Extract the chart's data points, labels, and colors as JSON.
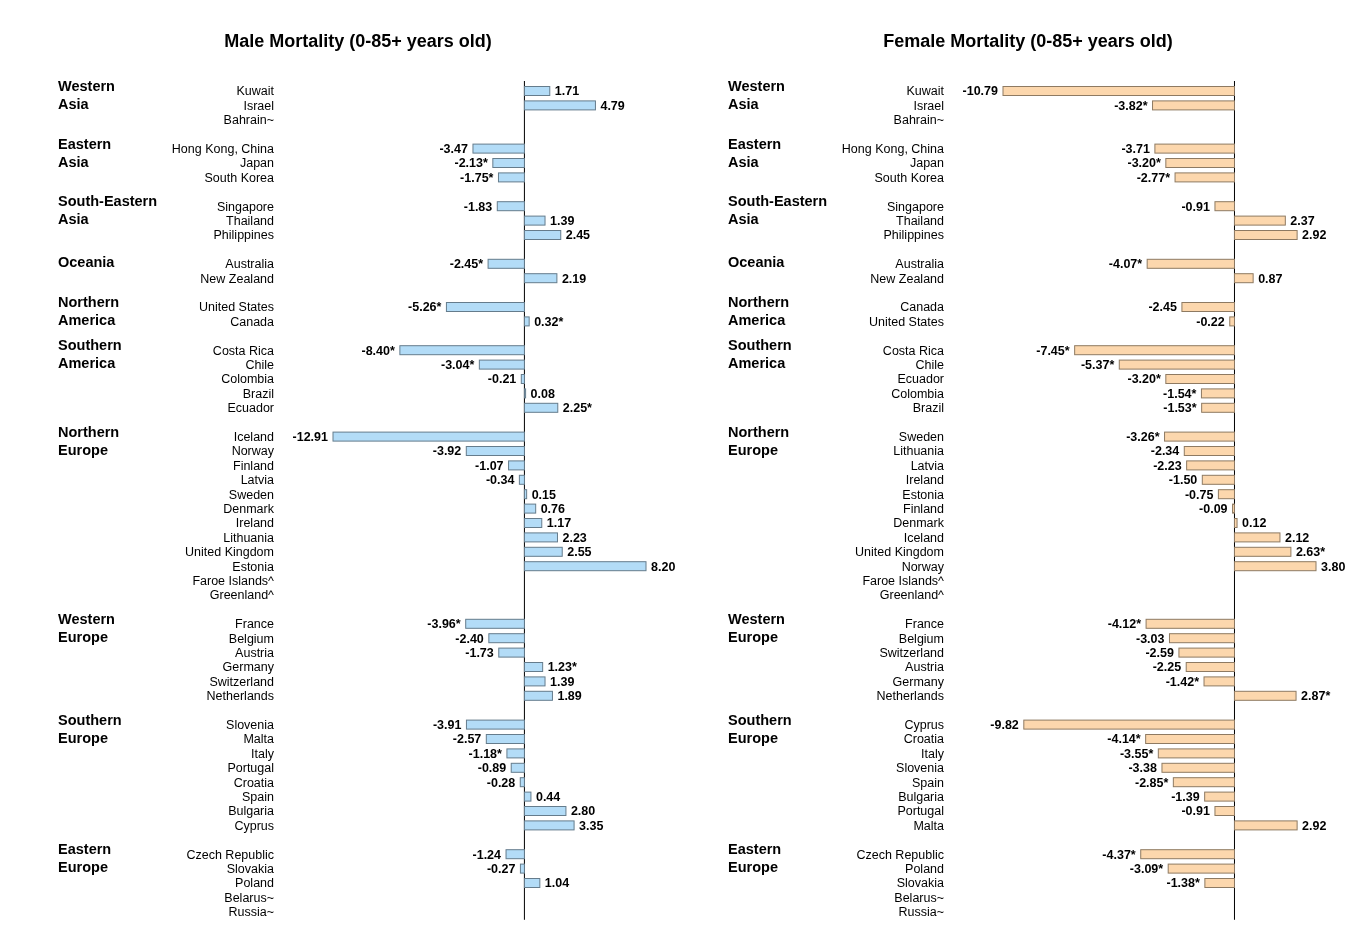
{
  "chart_data": [
    {
      "type": "bar",
      "orientation": "horizontal",
      "title": "Male Mortality (0-85+ years old)",
      "categories": [
        "Kuwait",
        "Israel",
        "Bahrain~",
        null,
        "Hong Kong, China",
        "Japan",
        "South Korea",
        null,
        "Singapore",
        "Thailand",
        "Philippines",
        null,
        "Australia",
        "New Zealand",
        null,
        "United States",
        "Canada",
        null,
        "Costa Rica",
        "Chile",
        "Colombia",
        "Brazil",
        "Ecuador",
        null,
        "Iceland",
        "Norway",
        "Finland",
        "Latvia",
        "Sweden",
        "Denmark",
        "Ireland",
        "Lithuania",
        "United Kingdom",
        "Estonia",
        "Faroe Islands^",
        "Greenland^",
        null,
        "France",
        "Belgium",
        "Austria",
        "Germany",
        "Switzerland",
        "Netherlands",
        null,
        "Slovenia",
        "Malta",
        "Italy",
        "Portugal",
        "Croatia",
        "Spain",
        "Bulgaria",
        "Cyprus",
        null,
        "Czech Republic",
        "Slovakia",
        "Poland",
        "Belarus~",
        "Russia~"
      ],
      "series": [
        {
          "color": "#b3dcf7",
          "values": [
            1.71,
            4.79,
            null,
            null,
            -3.47,
            -2.13,
            -1.75,
            null,
            -1.83,
            1.39,
            2.45,
            null,
            -2.45,
            2.19,
            null,
            -5.26,
            0.32,
            null,
            -8.4,
            -3.04,
            -0.21,
            0.08,
            2.25,
            null,
            -12.91,
            -3.92,
            -1.07,
            -0.34,
            0.15,
            0.76,
            1.17,
            2.23,
            2.55,
            8.2,
            null,
            null,
            null,
            -3.96,
            -2.4,
            -1.73,
            1.23,
            1.39,
            1.89,
            null,
            -3.91,
            -2.57,
            -1.18,
            -0.89,
            -0.28,
            0.44,
            2.8,
            3.35,
            null,
            -1.24,
            -0.27,
            1.04,
            null,
            null
          ],
          "value_labels": [
            "1.71",
            "4.79",
            null,
            null,
            "-3.47",
            "-2.13*",
            "-1.75*",
            null,
            "-1.83",
            "1.39",
            "2.45",
            null,
            "-2.45*",
            "2.19",
            null,
            "-5.26*",
            "0.32*",
            null,
            "-8.40*",
            "-3.04*",
            "-0.21",
            "0.08",
            "2.25*",
            null,
            "-12.91",
            "-3.92",
            "-1.07",
            "-0.34",
            "0.15",
            "0.76",
            "1.17",
            "2.23",
            "2.55",
            "8.20",
            null,
            null,
            null,
            "-3.96*",
            "-2.40",
            "-1.73",
            "1.23*",
            "1.39",
            "1.89",
            null,
            "-3.91",
            "-2.57",
            "-1.18*",
            "-0.89",
            "-0.28",
            "0.44",
            "2.80",
            "3.35",
            null,
            "-1.24",
            "-0.27",
            "1.04",
            null,
            null
          ]
        }
      ],
      "annotations": [
        "Western Asia",
        "Eastern Asia",
        "South-Eastern Asia",
        "Oceania",
        "Northern America",
        "Southern America",
        "Northern Europe",
        "Western Europe",
        "Southern Europe",
        "Eastern Europe"
      ]
    },
    {
      "type": "bar",
      "orientation": "horizontal",
      "title": "Female Mortality (0-85+ years old)",
      "categories": [
        "Kuwait",
        "Israel",
        "Bahrain~",
        null,
        "Hong Kong, China",
        "Japan",
        "South Korea",
        null,
        "Singapore",
        "Thailand",
        "Philippines",
        null,
        "Australia",
        "New Zealand",
        null,
        "Canada",
        "United States",
        null,
        "Costa Rica",
        "Chile",
        "Ecuador",
        "Colombia",
        "Brazil",
        null,
        "Sweden",
        "Lithuania",
        "Latvia",
        "Ireland",
        "Estonia",
        "Finland",
        "Denmark",
        "Iceland",
        "United Kingdom",
        "Norway",
        "Faroe Islands^",
        "Greenland^",
        null,
        "France",
        "Belgium",
        "Switzerland",
        "Austria",
        "Germany",
        "Netherlands",
        null,
        "Cyprus",
        "Croatia",
        "Italy",
        "Slovenia",
        "Spain",
        "Bulgaria",
        "Portugal",
        "Malta",
        null,
        "Czech Republic",
        "Poland",
        "Slovakia",
        "Belarus~",
        "Russia~"
      ],
      "series": [
        {
          "color": "#fcd7ad",
          "values": [
            -10.79,
            -3.82,
            null,
            null,
            -3.71,
            -3.2,
            -2.77,
            null,
            -0.91,
            2.37,
            2.92,
            null,
            -4.07,
            0.87,
            null,
            -2.45,
            -0.22,
            null,
            -7.45,
            -5.37,
            -3.2,
            -1.54,
            -1.53,
            null,
            -3.26,
            -2.34,
            -2.23,
            -1.5,
            -0.75,
            -0.09,
            0.12,
            2.12,
            2.63,
            3.8,
            null,
            null,
            null,
            -4.12,
            -3.03,
            -2.59,
            -2.25,
            -1.42,
            2.87,
            null,
            -9.82,
            -4.14,
            -3.55,
            -3.38,
            -2.85,
            -1.39,
            -0.91,
            2.92,
            null,
            -4.37,
            -3.09,
            -1.38,
            null,
            null
          ],
          "value_labels": [
            "-10.79",
            "-3.82*",
            null,
            null,
            "-3.71",
            "-3.20*",
            "-2.77*",
            null,
            "-0.91",
            "2.37",
            "2.92",
            null,
            "-4.07*",
            "0.87",
            null,
            "-2.45",
            "-0.22",
            null,
            "-7.45*",
            "-5.37*",
            "-3.20*",
            "-1.54*",
            "-1.53*",
            null,
            "-3.26*",
            "-2.34",
            "-2.23",
            "-1.50",
            "-0.75",
            "-0.09",
            "0.12",
            "2.12",
            "2.63*",
            "3.80",
            null,
            null,
            null,
            "-4.12*",
            "-3.03",
            "-2.59",
            "-2.25",
            "-1.42*",
            "2.87*",
            null,
            "-9.82",
            "-4.14*",
            "-3.55*",
            "-3.38",
            "-2.85*",
            "-1.39",
            "-0.91",
            "2.92",
            null,
            "-4.37*",
            "-3.09*",
            "-1.38*",
            null,
            null
          ]
        }
      ],
      "annotations": [
        "Western Asia",
        "Eastern Asia",
        "South-Eastern Asia",
        "Oceania",
        "Northern America",
        "Southern America",
        "Northern Europe",
        "Western Europe",
        "Southern Europe",
        "Eastern Europe"
      ]
    }
  ]
}
